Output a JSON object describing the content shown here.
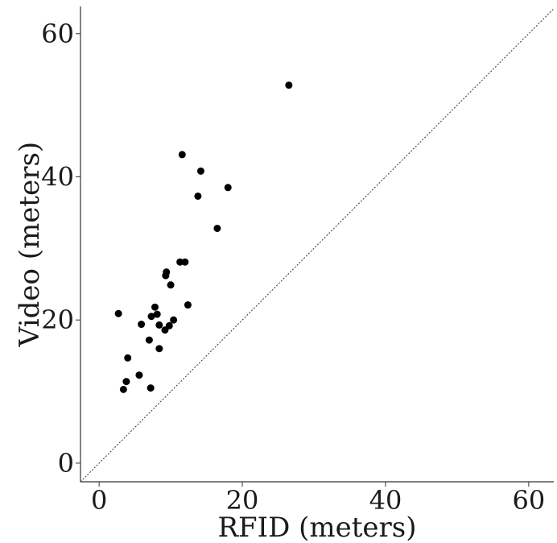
{
  "chart_data": {
    "type": "scatter",
    "xlabel": "RFID (meters)",
    "ylabel": "Video (meters)",
    "xlim": [
      -2.6,
      63.5
    ],
    "ylim": [
      -2.6,
      63.8
    ],
    "xticks": [
      0,
      20,
      40,
      60
    ],
    "yticks": [
      0,
      20,
      40,
      60
    ],
    "xtick_labels": [
      "0",
      "20",
      "40",
      "60"
    ],
    "ytick_labels": [
      "0",
      "20",
      "40",
      "60"
    ],
    "grid": false,
    "reference_line": "y = x (dotted)",
    "point_color": "#000000",
    "series": [
      {
        "x": [
          26.5,
          11.6,
          14.2,
          13.8,
          18.0,
          16.5,
          11.3,
          12.0,
          9.4,
          9.3,
          10.0,
          2.7,
          7.8,
          7.3,
          8.1,
          5.9,
          8.4,
          10.4,
          9.8,
          9.2,
          7.0,
          12.4,
          8.4,
          4.0,
          5.6,
          3.8,
          3.4,
          7.2
        ],
        "y": [
          52.8,
          43.1,
          40.8,
          37.3,
          38.5,
          32.8,
          28.1,
          28.1,
          26.7,
          26.2,
          24.9,
          20.9,
          21.8,
          20.5,
          20.8,
          19.4,
          19.3,
          20.0,
          19.2,
          18.6,
          17.2,
          22.1,
          16.0,
          14.7,
          12.3,
          11.4,
          10.3,
          10.5
        ]
      }
    ]
  }
}
